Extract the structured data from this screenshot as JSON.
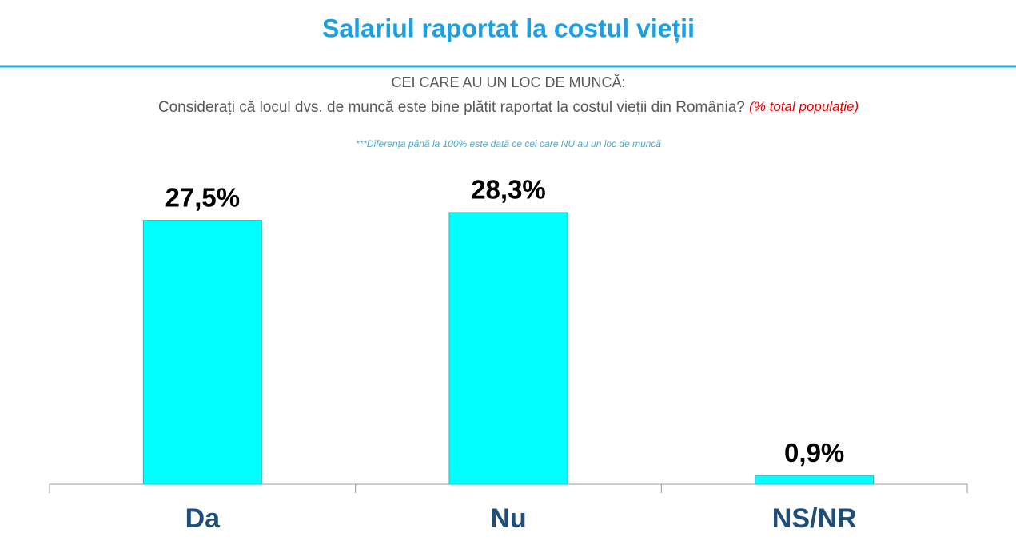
{
  "chart_data": {
    "type": "bar",
    "title": "Salariul raportat la costul vieții",
    "subtitle": "CEI CARE AU UN LOC DE MUNCĂ:",
    "question": "Considerați că locul dvs. de muncă este bine plătit raportat la costul vieții din România?",
    "question_unit": "(% total populație)",
    "footnote": "***Diferența până la 100% este dată ce cei care NU au un loc de muncă",
    "categories": [
      "Da",
      "Nu",
      "NS/NR"
    ],
    "values": [
      27.5,
      28.3,
      0.9
    ],
    "value_labels": [
      "27,5%",
      "28,3%",
      "0,9%"
    ],
    "color": "#00ffff"
  }
}
